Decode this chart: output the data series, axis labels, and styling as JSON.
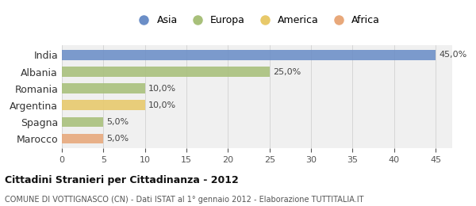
{
  "categories": [
    "India",
    "Albania",
    "Romania",
    "Argentina",
    "Spagna",
    "Marocco"
  ],
  "values": [
    45.0,
    25.0,
    10.0,
    10.0,
    5.0,
    5.0
  ],
  "bar_colors": [
    "#6b8ec7",
    "#a8c07a",
    "#a8c07a",
    "#e8c96a",
    "#a8c07a",
    "#e8a87a"
  ],
  "labels": [
    "45,0%",
    "25,0%",
    "10,0%",
    "10,0%",
    "5,0%",
    "5,0%"
  ],
  "xlim": [
    0,
    47
  ],
  "xticks": [
    0,
    5,
    10,
    15,
    20,
    25,
    30,
    35,
    40,
    45
  ],
  "title": "Cittadini Stranieri per Cittadinanza - 2012",
  "subtitle": "COMUNE DI VOTTIGNASCO (CN) - Dati ISTAT al 1° gennaio 2012 - Elaborazione TUTTITALIA.IT",
  "legend_labels": [
    "Asia",
    "Europa",
    "America",
    "Africa"
  ],
  "legend_colors": [
    "#6b8ec7",
    "#a8c07a",
    "#e8c96a",
    "#e8a87a"
  ],
  "background_color": "#ffffff",
  "bar_background": "#f0f0f0"
}
